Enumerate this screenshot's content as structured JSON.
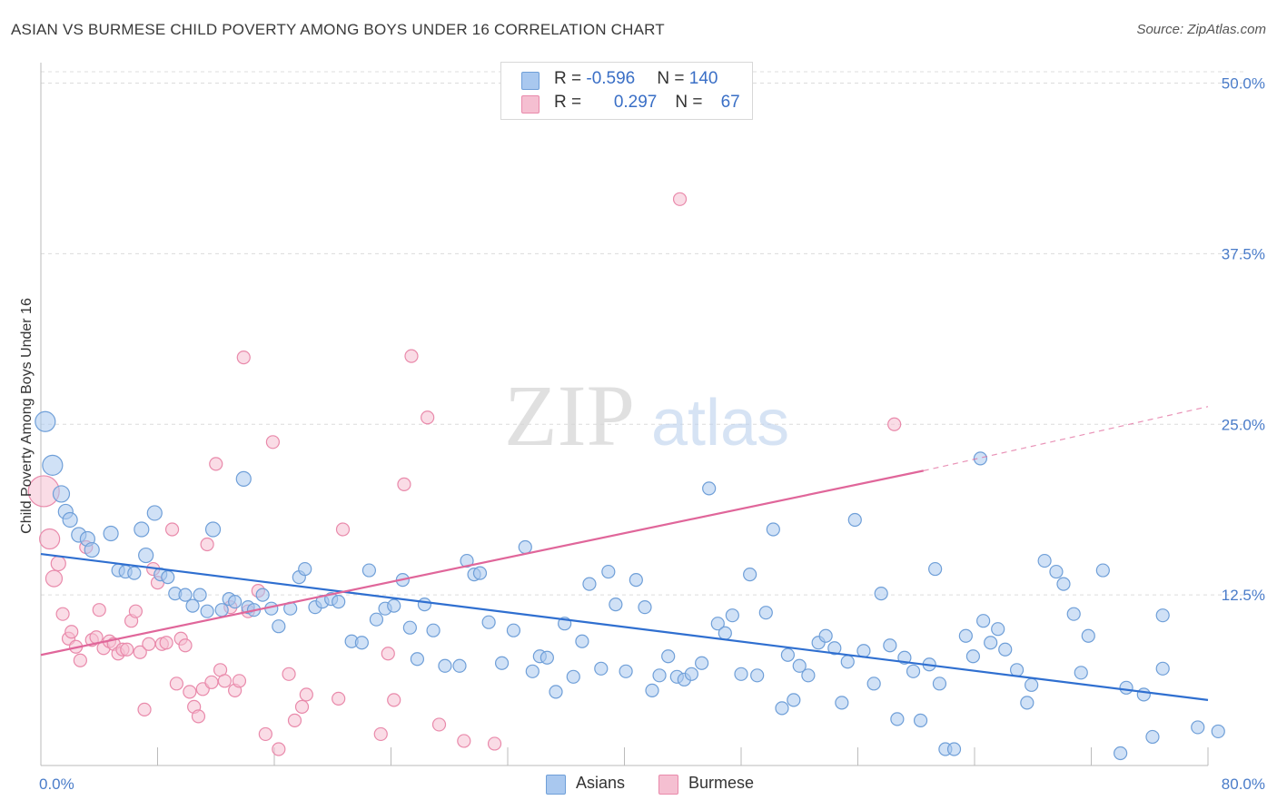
{
  "title": "ASIAN VS BURMESE CHILD POVERTY AMONG BOYS UNDER 16 CORRELATION CHART",
  "source": "Source: ZipAtlas.com",
  "watermark": {
    "zip": "ZIP",
    "atlas": "atlas"
  },
  "colors": {
    "asian_fill": "#a9c8ef",
    "asian_stroke": "#6f9fd8",
    "asian_line": "#2f6fd0",
    "burmese_fill": "#f5bfd1",
    "burmese_stroke": "#e98aab",
    "burmese_line": "#e0669a",
    "grid": "#dcdcdc",
    "tick_text": "#4a7cc9"
  },
  "legend": {
    "rows": [
      {
        "r_label": "R = ",
        "r_value": "-0.596",
        "n_label": "N = ",
        "n_value": "140"
      },
      {
        "r_label": "R = ",
        "r_value": "0.297",
        "n_label": "N = ",
        "n_value": "67"
      }
    ]
  },
  "bottom_legend": {
    "asians": "Asians",
    "burmese": "Burmese"
  },
  "chart_data": {
    "type": "scatter",
    "ylabel": "Child Poverty Among Boys Under 16",
    "xlim": [
      0,
      80
    ],
    "ylim": [
      0,
      51.5
    ],
    "x_tick_labels": {
      "min": "0.0%",
      "max": "80.0%"
    },
    "y_ticks": [
      12.5,
      25.0,
      37.5,
      50.0
    ],
    "y_tick_labels": [
      "12.5%",
      "25.0%",
      "37.5%",
      "50.0%"
    ],
    "grid": true,
    "series": [
      {
        "name": "Asians",
        "r": -0.596,
        "n": 140,
        "trend": {
          "x": [
            0,
            80
          ],
          "y": [
            15.5,
            4.8
          ]
        },
        "points": [
          [
            0.3,
            25.2,
            22
          ],
          [
            0.8,
            22.0,
            22
          ],
          [
            1.4,
            19.9,
            18
          ],
          [
            1.7,
            18.6,
            16
          ],
          [
            2.0,
            18.0,
            16
          ],
          [
            2.6,
            16.9,
            16
          ],
          [
            3.2,
            16.6,
            16
          ],
          [
            3.5,
            15.8,
            16
          ],
          [
            4.8,
            17.0,
            16
          ],
          [
            5.3,
            14.3,
            14
          ],
          [
            5.8,
            14.2,
            14
          ],
          [
            6.4,
            14.1,
            14
          ],
          [
            6.9,
            17.3,
            16
          ],
          [
            7.2,
            15.4,
            16
          ],
          [
            7.8,
            18.5,
            16
          ],
          [
            8.2,
            14.0,
            14
          ],
          [
            8.7,
            13.8,
            14
          ],
          [
            9.2,
            12.6,
            14
          ],
          [
            9.9,
            12.5,
            14
          ],
          [
            10.4,
            11.7,
            14
          ],
          [
            10.9,
            12.5,
            14
          ],
          [
            11.4,
            11.3,
            14
          ],
          [
            11.8,
            17.3,
            16
          ],
          [
            12.4,
            11.4,
            14
          ],
          [
            12.9,
            12.2,
            14
          ],
          [
            13.3,
            12.0,
            14
          ],
          [
            13.9,
            21.0,
            16
          ],
          [
            14.2,
            11.6,
            14
          ],
          [
            14.6,
            11.4,
            14
          ],
          [
            15.2,
            12.5,
            14
          ],
          [
            15.8,
            11.5,
            14
          ],
          [
            16.3,
            10.2,
            14
          ],
          [
            17.1,
            11.5,
            14
          ],
          [
            17.7,
            13.8,
            14
          ],
          [
            18.1,
            14.4,
            14
          ],
          [
            18.8,
            11.6,
            14
          ],
          [
            19.3,
            12.0,
            14
          ],
          [
            19.9,
            12.2,
            14
          ],
          [
            20.4,
            12.0,
            14
          ],
          [
            21.3,
            9.1,
            14
          ],
          [
            22.0,
            9.0,
            14
          ],
          [
            22.5,
            14.3,
            14
          ],
          [
            23.0,
            10.7,
            14
          ],
          [
            23.6,
            11.5,
            14
          ],
          [
            24.2,
            11.7,
            14
          ],
          [
            24.8,
            13.6,
            14
          ],
          [
            25.3,
            10.1,
            14
          ],
          [
            25.8,
            7.8,
            14
          ],
          [
            26.3,
            11.8,
            14
          ],
          [
            26.9,
            9.9,
            14
          ],
          [
            27.7,
            7.3,
            14
          ],
          [
            28.7,
            7.3,
            14
          ],
          [
            29.2,
            15.0,
            14
          ],
          [
            29.7,
            14.0,
            14
          ],
          [
            30.1,
            14.1,
            14
          ],
          [
            30.7,
            10.5,
            14
          ],
          [
            31.6,
            7.5,
            14
          ],
          [
            32.4,
            9.9,
            14
          ],
          [
            33.2,
            16.0,
            14
          ],
          [
            33.7,
            6.9,
            14
          ],
          [
            34.2,
            8.0,
            14
          ],
          [
            34.7,
            7.9,
            14
          ],
          [
            35.3,
            5.4,
            14
          ],
          [
            35.9,
            10.4,
            14
          ],
          [
            36.5,
            6.5,
            14
          ],
          [
            37.1,
            9.1,
            14
          ],
          [
            37.6,
            13.3,
            14
          ],
          [
            38.4,
            7.1,
            14
          ],
          [
            38.9,
            14.2,
            14
          ],
          [
            39.4,
            11.8,
            14
          ],
          [
            40.1,
            6.9,
            14
          ],
          [
            40.8,
            13.6,
            14
          ],
          [
            41.4,
            11.6,
            14
          ],
          [
            41.9,
            5.5,
            14
          ],
          [
            42.4,
            6.6,
            14
          ],
          [
            43.0,
            8.0,
            14
          ],
          [
            43.6,
            6.5,
            14
          ],
          [
            44.1,
            6.3,
            14
          ],
          [
            44.6,
            6.7,
            14
          ],
          [
            45.3,
            7.5,
            14
          ],
          [
            45.8,
            20.3,
            14
          ],
          [
            46.4,
            10.4,
            14
          ],
          [
            46.9,
            9.7,
            14
          ],
          [
            47.4,
            11.0,
            14
          ],
          [
            48.0,
            6.7,
            14
          ],
          [
            48.6,
            14.0,
            14
          ],
          [
            49.1,
            6.6,
            14
          ],
          [
            49.7,
            11.2,
            14
          ],
          [
            50.2,
            17.3,
            14
          ],
          [
            50.8,
            4.2,
            14
          ],
          [
            51.2,
            8.1,
            14
          ],
          [
            51.6,
            4.8,
            14
          ],
          [
            52.0,
            7.3,
            14
          ],
          [
            52.6,
            6.6,
            14
          ],
          [
            53.3,
            9.0,
            14
          ],
          [
            53.8,
            9.5,
            14
          ],
          [
            54.4,
            8.6,
            14
          ],
          [
            54.9,
            4.6,
            14
          ],
          [
            55.3,
            7.6,
            14
          ],
          [
            55.8,
            18.0,
            14
          ],
          [
            56.4,
            8.4,
            14
          ],
          [
            57.1,
            6.0,
            14
          ],
          [
            57.6,
            12.6,
            14
          ],
          [
            58.2,
            8.8,
            14
          ],
          [
            58.7,
            3.4,
            14
          ],
          [
            59.2,
            7.9,
            14
          ],
          [
            59.8,
            6.9,
            14
          ],
          [
            60.3,
            3.3,
            14
          ],
          [
            60.9,
            7.4,
            14
          ],
          [
            61.3,
            14.4,
            14
          ],
          [
            61.6,
            6.0,
            14
          ],
          [
            62.0,
            1.2,
            14
          ],
          [
            62.6,
            1.2,
            14
          ],
          [
            63.4,
            9.5,
            14
          ],
          [
            63.9,
            8.0,
            14
          ],
          [
            64.4,
            22.5,
            14
          ],
          [
            64.6,
            10.6,
            14
          ],
          [
            65.1,
            9.0,
            14
          ],
          [
            65.6,
            10.0,
            14
          ],
          [
            66.1,
            8.5,
            14
          ],
          [
            66.9,
            7.0,
            14
          ],
          [
            67.6,
            4.6,
            14
          ],
          [
            67.9,
            5.9,
            14
          ],
          [
            68.8,
            15.0,
            14
          ],
          [
            69.6,
            14.2,
            14
          ],
          [
            70.1,
            13.3,
            14
          ],
          [
            70.8,
            11.1,
            14
          ],
          [
            71.3,
            6.8,
            14
          ],
          [
            71.8,
            9.5,
            14
          ],
          [
            72.8,
            14.3,
            14
          ],
          [
            74.0,
            0.9,
            14
          ],
          [
            74.4,
            5.7,
            14
          ],
          [
            75.6,
            5.2,
            14
          ],
          [
            76.2,
            2.1,
            14
          ],
          [
            76.9,
            7.1,
            14
          ],
          [
            76.9,
            11.0,
            14
          ],
          [
            79.3,
            2.8,
            14
          ],
          [
            80.7,
            2.5,
            14
          ]
        ]
      },
      {
        "name": "Burmese",
        "r": 0.297,
        "n": 67,
        "trend": {
          "x": [
            0,
            60.5
          ],
          "y": [
            8.1,
            21.6
          ]
        },
        "trend_ext": {
          "x": [
            60.5,
            80
          ],
          "y": [
            21.6,
            26.3
          ]
        },
        "points": [
          [
            0.2,
            20.1,
            34
          ],
          [
            0.6,
            16.6,
            22
          ],
          [
            0.9,
            13.7,
            18
          ],
          [
            1.2,
            14.8,
            16
          ],
          [
            1.5,
            11.1,
            14
          ],
          [
            1.9,
            9.3,
            14
          ],
          [
            2.1,
            9.8,
            14
          ],
          [
            2.4,
            8.7,
            14
          ],
          [
            2.7,
            7.7,
            14
          ],
          [
            3.1,
            16.0,
            14
          ],
          [
            3.5,
            9.2,
            14
          ],
          [
            3.8,
            9.4,
            14
          ],
          [
            4.0,
            11.4,
            14
          ],
          [
            4.3,
            8.6,
            14
          ],
          [
            4.7,
            9.1,
            14
          ],
          [
            5.0,
            8.9,
            14
          ],
          [
            5.3,
            8.2,
            14
          ],
          [
            5.6,
            8.5,
            14
          ],
          [
            5.9,
            8.5,
            14
          ],
          [
            6.2,
            10.6,
            14
          ],
          [
            6.5,
            11.3,
            14
          ],
          [
            6.8,
            8.3,
            14
          ],
          [
            7.1,
            4.1,
            14
          ],
          [
            7.4,
            8.9,
            14
          ],
          [
            7.7,
            14.4,
            14
          ],
          [
            8.0,
            13.4,
            14
          ],
          [
            8.3,
            8.9,
            14
          ],
          [
            8.6,
            9.0,
            14
          ],
          [
            9.0,
            17.3,
            14
          ],
          [
            9.3,
            6.0,
            14
          ],
          [
            9.6,
            9.3,
            14
          ],
          [
            9.9,
            8.8,
            14
          ],
          [
            10.2,
            5.4,
            14
          ],
          [
            10.5,
            4.3,
            14
          ],
          [
            10.8,
            3.6,
            14
          ],
          [
            11.1,
            5.6,
            14
          ],
          [
            11.4,
            16.2,
            14
          ],
          [
            11.7,
            6.1,
            14
          ],
          [
            12.0,
            22.1,
            14
          ],
          [
            12.3,
            7.0,
            14
          ],
          [
            12.6,
            6.2,
            14
          ],
          [
            13.0,
            11.6,
            14
          ],
          [
            13.3,
            5.5,
            14
          ],
          [
            13.6,
            6.2,
            14
          ],
          [
            13.9,
            29.9,
            14
          ],
          [
            14.2,
            11.3,
            14
          ],
          [
            14.9,
            12.8,
            14
          ],
          [
            15.4,
            2.3,
            14
          ],
          [
            15.9,
            23.7,
            14
          ],
          [
            16.3,
            1.2,
            14
          ],
          [
            17.0,
            6.7,
            14
          ],
          [
            17.4,
            3.3,
            14
          ],
          [
            17.9,
            4.3,
            14
          ],
          [
            18.2,
            5.2,
            14
          ],
          [
            20.7,
            17.3,
            14
          ],
          [
            20.4,
            4.9,
            14
          ],
          [
            23.8,
            8.2,
            14
          ],
          [
            24.2,
            4.8,
            14
          ],
          [
            24.9,
            20.6,
            14
          ],
          [
            25.4,
            30.0,
            14
          ],
          [
            26.5,
            25.5,
            14
          ],
          [
            23.3,
            2.3,
            14
          ],
          [
            27.3,
            3.0,
            14
          ],
          [
            29.0,
            1.8,
            14
          ],
          [
            31.1,
            1.6,
            14
          ],
          [
            43.8,
            41.5,
            14
          ],
          [
            58.5,
            25.0,
            14
          ]
        ]
      }
    ]
  }
}
